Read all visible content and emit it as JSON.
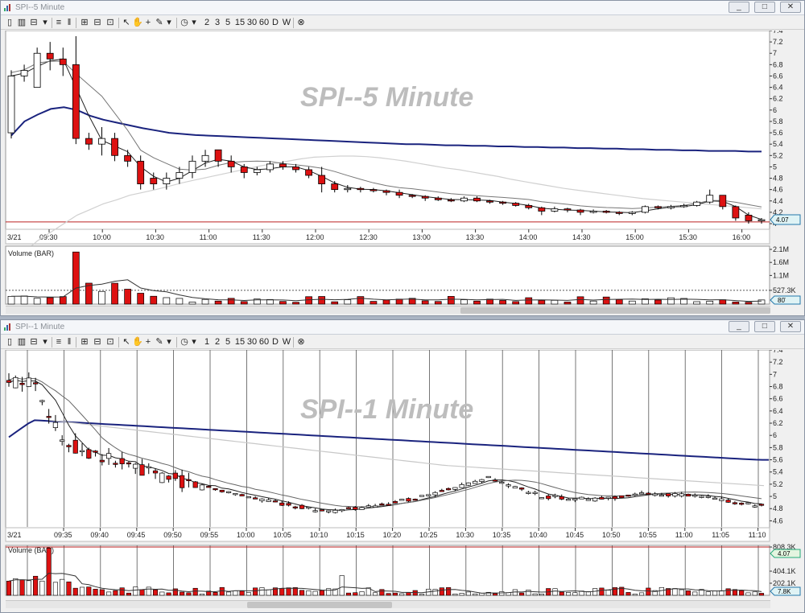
{
  "windows": [
    {
      "id": "win1",
      "title": "SPI--5 Minute",
      "watermark": "SPI--5 Minute",
      "toolbar": [
        "2",
        "3",
        "5",
        "15",
        "30",
        "60",
        "D",
        "W"
      ],
      "window_buttons": [
        "_",
        "□",
        "✕"
      ],
      "date_label": "3/21",
      "volume_title": "Volume (BAR)",
      "last_price_tag": "4.07",
      "volume_tag": "80̄"
    },
    {
      "id": "win2",
      "title": "SPI--1 Minute",
      "watermark": "SPI--1 Minute",
      "toolbar": [
        "1",
        "2",
        "5",
        "15",
        "30",
        "60",
        "D",
        "W"
      ],
      "window_buttons": [
        "_",
        "□",
        "✕"
      ],
      "date_label": "3/21",
      "volume_title": "Volume (BAR)",
      "last_price_tag": "4.07",
      "volume_tag": "7.8K"
    }
  ],
  "chart_data": [
    {
      "type": "candlestick",
      "title": "SPI--5 Minute",
      "x_ticks": [
        "09:30",
        "10:00",
        "10:30",
        "11:00",
        "11:30",
        "12:00",
        "12:30",
        "13:00",
        "13:30",
        "14:00",
        "14:30",
        "15:00",
        "15:30",
        "16:00"
      ],
      "y_ticks": [
        "7.4",
        "7.2",
        "7",
        "6.8",
        "6.6",
        "6.4",
        "6.2",
        "6",
        "5.8",
        "5.6",
        "5.4",
        "5.2",
        "5",
        "4.8",
        "4.6",
        "4.4",
        "4.2",
        "4"
      ],
      "ylim": [
        4,
        7.4
      ],
      "last_price": 4.07,
      "price_ceiling_line": 4.03,
      "moving_averages": [
        {
          "color": "#1a237e",
          "values": [
            5.55,
            5.8,
            5.92,
            6.02,
            6.05,
            6.0,
            5.9,
            5.83,
            5.78,
            5.73,
            5.68,
            5.64,
            5.6,
            5.58,
            5.56,
            5.55,
            5.54,
            5.53,
            5.52,
            5.51,
            5.5,
            5.49,
            5.48,
            5.47,
            5.46,
            5.45,
            5.44,
            5.43,
            5.42,
            5.41,
            5.4,
            5.4,
            5.39,
            5.38,
            5.38,
            5.37,
            5.37,
            5.36,
            5.36,
            5.35,
            5.35,
            5.34,
            5.34,
            5.33,
            5.33,
            5.32,
            5.32,
            5.31,
            5.31,
            5.3,
            5.3,
            5.29,
            5.29,
            5.28,
            5.28,
            5.28,
            5.27,
            5.27
          ]
        },
        {
          "color": "#d0d0d0",
          "values": [
            3.3,
            3.5,
            3.7,
            3.85,
            4.0,
            4.15,
            4.25,
            4.35,
            4.42,
            4.5,
            4.55,
            4.6,
            4.66,
            4.72,
            4.77,
            4.82,
            4.87,
            4.92,
            4.97,
            5.02,
            5.06,
            5.1,
            5.14,
            5.17,
            5.18,
            5.19,
            5.19,
            5.18,
            5.16,
            5.13,
            5.1,
            5.06,
            5.02,
            4.98,
            4.95,
            4.91,
            4.87,
            4.83,
            4.78,
            4.74,
            4.7,
            4.66,
            4.62,
            4.59,
            4.56,
            4.53,
            4.5,
            4.47,
            4.44,
            4.42,
            4.4,
            4.38,
            4.36,
            4.34,
            4.32,
            4.3,
            4.28,
            4.26
          ]
        }
      ],
      "candles": [
        [
          5.6,
          6.6,
          5.5,
          6.7
        ],
        [
          6.6,
          6.7,
          6.5,
          6.8
        ],
        [
          6.4,
          7.0,
          6.4,
          7.1
        ],
        [
          7.0,
          6.9,
          6.7,
          7.2
        ],
        [
          6.9,
          6.8,
          6.6,
          7.1
        ],
        [
          6.8,
          5.5,
          5.4,
          7.3
        ],
        [
          5.5,
          5.4,
          5.3,
          5.6
        ],
        [
          5.4,
          5.5,
          5.2,
          5.7
        ],
        [
          5.5,
          5.2,
          5.1,
          5.6
        ],
        [
          5.2,
          5.1,
          5.0,
          5.3
        ],
        [
          5.1,
          4.7,
          4.6,
          5.2
        ],
        [
          4.8,
          4.7,
          4.6,
          4.9
        ],
        [
          4.7,
          4.8,
          4.6,
          4.9
        ],
        [
          4.8,
          4.9,
          4.7,
          5.0
        ],
        [
          4.9,
          5.1,
          4.8,
          5.2
        ],
        [
          5.1,
          5.2,
          5.0,
          5.3
        ],
        [
          5.3,
          5.1,
          5.0,
          5.3
        ],
        [
          5.1,
          5.0,
          4.9,
          5.2
        ],
        [
          5.0,
          4.9,
          4.8,
          5.05
        ],
        [
          4.9,
          4.95,
          4.85,
          5.0
        ],
        [
          4.95,
          5.05,
          4.9,
          5.1
        ],
        [
          5.05,
          5.0,
          4.95,
          5.1
        ],
        [
          5.0,
          4.95,
          4.9,
          5.05
        ],
        [
          4.95,
          4.85,
          4.8,
          5.0
        ],
        [
          4.85,
          4.7,
          4.55,
          5.0
        ],
        [
          4.7,
          4.6,
          4.55,
          4.75
        ],
        [
          4.6,
          4.62,
          4.55,
          4.68
        ],
        [
          4.62,
          4.6,
          4.55,
          4.65
        ],
        [
          4.6,
          4.58,
          4.55,
          4.63
        ],
        [
          4.58,
          4.55,
          4.5,
          4.6
        ],
        [
          4.55,
          4.5,
          4.45,
          4.6
        ],
        [
          4.5,
          4.48,
          4.45,
          4.52
        ],
        [
          4.48,
          4.45,
          4.4,
          4.5
        ],
        [
          4.45,
          4.42,
          4.4,
          4.48
        ],
        [
          4.42,
          4.4,
          4.38,
          4.45
        ],
        [
          4.4,
          4.45,
          4.38,
          4.48
        ],
        [
          4.45,
          4.4,
          4.38,
          4.48
        ],
        [
          4.4,
          4.38,
          4.35,
          4.42
        ],
        [
          4.38,
          4.36,
          4.33,
          4.4
        ],
        [
          4.36,
          4.32,
          4.3,
          4.38
        ],
        [
          4.32,
          4.28,
          4.25,
          4.35
        ],
        [
          4.28,
          4.22,
          4.15,
          4.3
        ],
        [
          4.22,
          4.26,
          4.2,
          4.3
        ],
        [
          4.26,
          4.24,
          4.2,
          4.28
        ],
        [
          4.24,
          4.2,
          4.15,
          4.26
        ],
        [
          4.2,
          4.22,
          4.18,
          4.25
        ],
        [
          4.22,
          4.2,
          4.18,
          4.24
        ],
        [
          4.2,
          4.18,
          4.15,
          4.22
        ],
        [
          4.18,
          4.2,
          4.15,
          4.22
        ],
        [
          4.2,
          4.3,
          4.18,
          4.32
        ],
        [
          4.3,
          4.28,
          4.25,
          4.32
        ],
        [
          4.28,
          4.3,
          4.25,
          4.33
        ],
        [
          4.3,
          4.32,
          4.28,
          4.35
        ],
        [
          4.32,
          4.38,
          4.3,
          4.4
        ],
        [
          4.38,
          4.5,
          4.35,
          4.6
        ],
        [
          4.5,
          4.3,
          4.25,
          4.5
        ],
        [
          4.3,
          4.1,
          4.05,
          4.32
        ],
        [
          4.15,
          4.05,
          4.0,
          4.2
        ],
        [
          4.05,
          4.07,
          4.0,
          4.1
        ]
      ],
      "volume_ticks": [
        "2.1M",
        "1.6M",
        "1.1M",
        "527.3K"
      ],
      "volume_max": 2100000
    },
    {
      "type": "candlestick",
      "title": "SPI--1 Minute",
      "x_ticks": [
        "09:35",
        "09:40",
        "09:45",
        "09:50",
        "09:55",
        "10:00",
        "10:05",
        "10:10",
        "10:15",
        "10:20",
        "10:25",
        "10:30",
        "10:35",
        "10:40",
        "10:45",
        "10:50",
        "10:55",
        "11:00",
        "11:05",
        "11:10"
      ],
      "y_ticks": [
        "7.4",
        "7.2",
        "7",
        "6.8",
        "6.6",
        "6.4",
        "6.2",
        "6",
        "5.8",
        "5.6",
        "5.4",
        "5.2",
        "5",
        "4.8",
        "4.6"
      ],
      "ylim": [
        4.5,
        7.4
      ],
      "last_price": 4.07,
      "volume_ticks": [
        "808.3K",
        "404.1K",
        "202.1K"
      ],
      "volume_max": 808300
    }
  ]
}
